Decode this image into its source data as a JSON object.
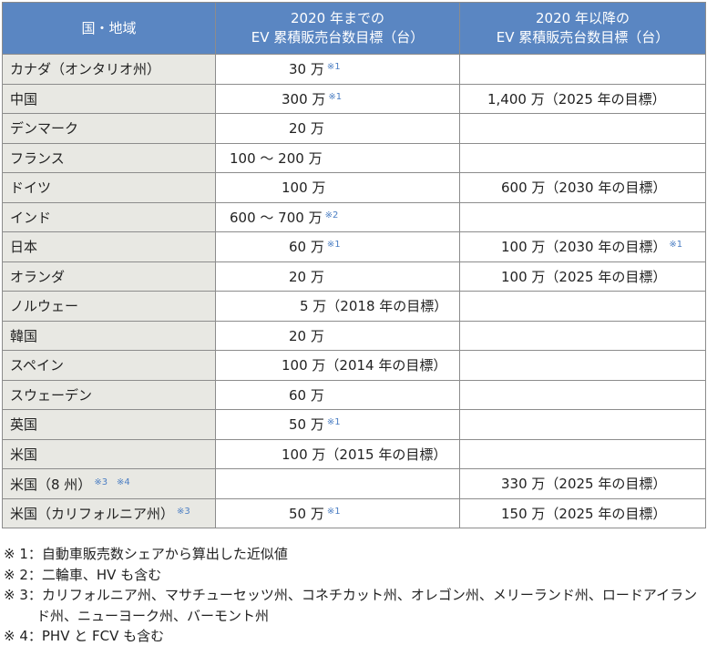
{
  "header": {
    "col1": "国・地域",
    "col2_line1": "2020 年までの",
    "col2_line2": "EV 累積販売台数目標（台）",
    "col3_line1": "2020 年以降の",
    "col3_line2": "EV 累積販売台数目標（台）"
  },
  "rows": [
    {
      "country": "カナダ（オンタリオ州）",
      "country_note": "",
      "v1": "30 万",
      "v1_note": "※1",
      "v2": "",
      "v2_note": ""
    },
    {
      "country": "中国",
      "country_note": "",
      "v1": "300 万",
      "v1_note": "※1",
      "v2": "1,400 万（2025 年の目標）",
      "v2_note": ""
    },
    {
      "country": "デンマーク",
      "country_note": "",
      "v1": "20 万",
      "v1_note": "",
      "v2": "",
      "v2_note": ""
    },
    {
      "country": "フランス",
      "country_note": "",
      "v1": "100 ～ 200 万",
      "v1_note": "",
      "v2": "",
      "v2_note": ""
    },
    {
      "country": "ドイツ",
      "country_note": "",
      "v1": "100 万",
      "v1_note": "",
      "v2": "600 万（2030 年の目標）",
      "v2_note": ""
    },
    {
      "country": "インド",
      "country_note": "",
      "v1": "600 ～ 700 万",
      "v1_note": "※2",
      "v2": "",
      "v2_note": ""
    },
    {
      "country": "日本",
      "country_note": "",
      "v1": "60 万",
      "v1_note": "※1",
      "v2": "100 万（2030 年の目標）",
      "v2_note": "※1"
    },
    {
      "country": "オランダ",
      "country_note": "",
      "v1": "20 万",
      "v1_note": "",
      "v2": "100 万（2025 年の目標）",
      "v2_note": ""
    },
    {
      "country": "ノルウェー",
      "country_note": "",
      "v1": "5 万（2018 年の目標）",
      "v1_note": "",
      "v2": "",
      "v2_note": ""
    },
    {
      "country": "韓国",
      "country_note": "",
      "v1": "20 万",
      "v1_note": "",
      "v2": "",
      "v2_note": ""
    },
    {
      "country": "スペイン",
      "country_note": "",
      "v1": "100 万（2014 年の目標）",
      "v1_note": "",
      "v2": "",
      "v2_note": ""
    },
    {
      "country": "スウェーデン",
      "country_note": "",
      "v1": "60 万",
      "v1_note": "",
      "v2": "",
      "v2_note": ""
    },
    {
      "country": "英国",
      "country_note": "",
      "v1": "50 万",
      "v1_note": "※1",
      "v2": "",
      "v2_note": ""
    },
    {
      "country": "米国",
      "country_note": "",
      "v1": "100 万（2015 年の目標）",
      "v1_note": "",
      "v2": "",
      "v2_note": ""
    },
    {
      "country": "米国（8 州）",
      "country_note": "※3　※4",
      "v1": "",
      "v1_note": "",
      "v2": "330 万（2025 年の目標）",
      "v2_note": ""
    },
    {
      "country": "米国（カリフォルニア州）",
      "country_note": "※3",
      "v1": "50 万",
      "v1_note": "※1",
      "v2": "150 万（2025 年の目標）",
      "v2_note": ""
    }
  ],
  "notes": {
    "n1": "※ 1：自動車販売数シェアから算出した近似値",
    "n2": "※ 2：二輪車、HV も含む",
    "n3_line1": "※ 3：カリフォルニア州、マサチューセッツ州、コネチカット州、オレゴン州、メリーランド州、ロードアイラン",
    "n3_line2": "ド州、ニューヨーク州、バーモント州",
    "n4": "※ 4：PHV と FCV も含む"
  }
}
